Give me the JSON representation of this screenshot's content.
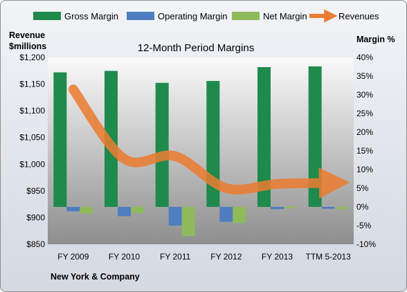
{
  "chart_data": {
    "type": "bar",
    "title": "12-Month Period Margins",
    "company": "New York & Company",
    "categories": [
      "FY 2009",
      "FY 2010",
      "FY 2011",
      "FY 2012",
      "FY 2013",
      "TTM 5-2013"
    ],
    "series": [
      {
        "name": "Gross Margin",
        "axis": "right",
        "type": "bar",
        "color": "#1e8a4c",
        "values": [
          36.0,
          36.4,
          33.2,
          33.7,
          37.4,
          37.6
        ]
      },
      {
        "name": "Operating Margin",
        "axis": "right",
        "type": "bar",
        "color": "#4f7ec0",
        "values": [
          -1.2,
          -2.5,
          -5.0,
          -4.0,
          -0.6,
          -0.5
        ]
      },
      {
        "name": "Net Margin",
        "axis": "right",
        "type": "bar",
        "color": "#8fba5c",
        "values": [
          -1.8,
          -1.6,
          -7.8,
          -4.3,
          -0.4,
          -0.6
        ]
      },
      {
        "name": "Revenues",
        "axis": "left",
        "type": "line",
        "color": "#ec7c30",
        "values": [
          1140,
          1010,
          1015,
          955,
          963,
          965
        ]
      }
    ],
    "y_left": {
      "label_line1": "Revenue",
      "label_line2": "$millions",
      "ticks": [
        "$1,200",
        "$1,150",
        "$1,100",
        "$1,050",
        "$1,000",
        "$950",
        "$900",
        "$850"
      ],
      "min": 850,
      "max": 1200
    },
    "y_right": {
      "label": "Margin %",
      "ticks": [
        "40%",
        "35%",
        "30%",
        "25%",
        "20%",
        "15%",
        "10%",
        "5%",
        "0%",
        "-5%",
        "-10%"
      ],
      "min": -10,
      "max": 40
    },
    "legend_position": "top",
    "grid": false
  }
}
